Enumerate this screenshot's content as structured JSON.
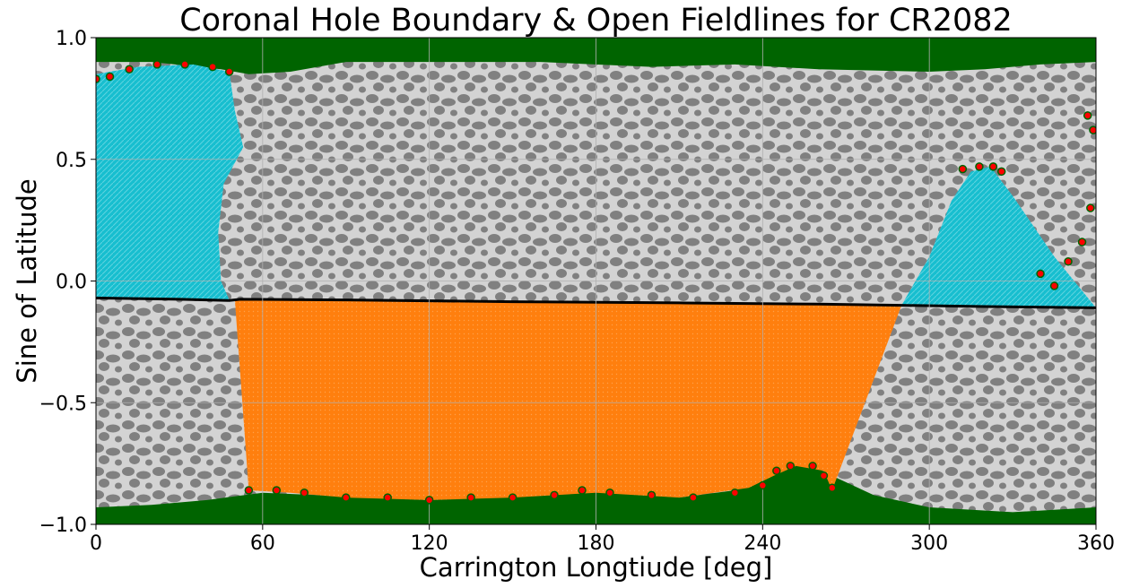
{
  "chart_data": {
    "type": "scatter",
    "title": "Coronal Hole Boundary & Open Fieldlines for CR2082",
    "xlabel": "Carrington Longtiude [deg]",
    "ylabel": "Sine of Latitude",
    "xlim": [
      0,
      360
    ],
    "ylim": [
      -1.0,
      1.0
    ],
    "grid": true,
    "x_ticks": [
      0,
      60,
      120,
      180,
      240,
      300,
      360
    ],
    "y_ticks": [
      -1.0,
      -0.5,
      0.0,
      0.5,
      1.0
    ],
    "x_tick_labels": [
      "0",
      "60",
      "120",
      "180",
      "240",
      "300",
      "360"
    ],
    "y_tick_labels": [
      "−1.0",
      "−0.5",
      "0.0",
      "0.5",
      "1.0"
    ],
    "colors": {
      "background_quiet": "#d3d3d3",
      "magnetic_patches": "#808080",
      "polar_regions": "#006400",
      "boundary_points": "#ff0000",
      "open_fieldlines_north": "#17becf",
      "open_fieldlines_south": "#ff7f0e",
      "neutral_line": "#000000"
    },
    "series": [
      {
        "name": "",
        "kind": "north_polar_region",
        "color": "#006400",
        "points": [
          [
            0,
            0.9
          ],
          [
            20,
            0.9
          ],
          [
            45,
            0.87
          ],
          [
            55,
            0.85
          ],
          [
            70,
            0.86
          ],
          [
            90,
            0.9
          ],
          [
            120,
            0.9
          ],
          [
            160,
            0.9
          ],
          [
            200,
            0.88
          ],
          [
            230,
            0.89
          ],
          [
            260,
            0.87
          ],
          [
            300,
            0.86
          ],
          [
            320,
            0.87
          ],
          [
            340,
            0.89
          ],
          [
            360,
            0.9
          ]
        ]
      },
      {
        "name": "",
        "kind": "south_polar_region",
        "color": "#006400",
        "points": [
          [
            0,
            -0.93
          ],
          [
            20,
            -0.92
          ],
          [
            40,
            -0.9
          ],
          [
            60,
            -0.87
          ],
          [
            80,
            -0.88
          ],
          [
            100,
            -0.89
          ],
          [
            120,
            -0.9
          ],
          [
            140,
            -0.89
          ],
          [
            160,
            -0.88
          ],
          [
            175,
            -0.86
          ],
          [
            190,
            -0.87
          ],
          [
            210,
            -0.89
          ],
          [
            230,
            -0.86
          ],
          [
            245,
            -0.78
          ],
          [
            255,
            -0.74
          ],
          [
            265,
            -0.8
          ],
          [
            280,
            -0.88
          ],
          [
            300,
            -0.93
          ],
          [
            330,
            -0.95
          ],
          [
            360,
            -0.93
          ]
        ]
      },
      {
        "name": "",
        "kind": "neutral_line",
        "color": "#000000",
        "points": [
          [
            0,
            -0.07
          ],
          [
            30,
            -0.075
          ],
          [
            48,
            -0.08
          ],
          [
            52,
            -0.075
          ],
          [
            90,
            -0.078
          ],
          [
            150,
            -0.085
          ],
          [
            210,
            -0.09
          ],
          [
            260,
            -0.095
          ],
          [
            290,
            -0.1
          ],
          [
            320,
            -0.105
          ],
          [
            360,
            -0.11
          ]
        ]
      },
      {
        "name": "",
        "kind": "open_fieldlines_north_west",
        "color": "#17becf",
        "polygon": [
          [
            0,
            0.85
          ],
          [
            15,
            0.88
          ],
          [
            35,
            0.89
          ],
          [
            48,
            0.86
          ],
          [
            50,
            0.7
          ],
          [
            53,
            0.55
          ],
          [
            46,
            0.4
          ],
          [
            44,
            0.2
          ],
          [
            45,
            0.0
          ],
          [
            48,
            -0.078
          ],
          [
            0,
            -0.07
          ]
        ]
      },
      {
        "name": "",
        "kind": "open_fieldlines_north_east",
        "color": "#17becf",
        "polygon": [
          [
            290,
            -0.1
          ],
          [
            300,
            0.1
          ],
          [
            308,
            0.33
          ],
          [
            315,
            0.45
          ],
          [
            322,
            0.47
          ],
          [
            330,
            0.35
          ],
          [
            345,
            0.1
          ],
          [
            360,
            -0.11
          ]
        ]
      },
      {
        "name": "",
        "kind": "open_fieldlines_south",
        "color": "#ff7f0e",
        "polygon": [
          [
            50,
            -0.078
          ],
          [
            290,
            -0.1
          ],
          [
            265,
            -0.86
          ],
          [
            262,
            -0.78
          ],
          [
            252,
            -0.76
          ],
          [
            244,
            -0.8
          ],
          [
            235,
            -0.85
          ],
          [
            210,
            -0.89
          ],
          [
            180,
            -0.87
          ],
          [
            150,
            -0.89
          ],
          [
            120,
            -0.9
          ],
          [
            90,
            -0.89
          ],
          [
            70,
            -0.87
          ],
          [
            55,
            -0.86
          ]
        ]
      },
      {
        "name": "",
        "kind": "boundary_south",
        "color": "#ff0000",
        "points": [
          [
            55,
            -0.86
          ],
          [
            65,
            -0.86
          ],
          [
            75,
            -0.87
          ],
          [
            90,
            -0.89
          ],
          [
            105,
            -0.89
          ],
          [
            120,
            -0.9
          ],
          [
            135,
            -0.89
          ],
          [
            150,
            -0.89
          ],
          [
            165,
            -0.88
          ],
          [
            175,
            -0.86
          ],
          [
            185,
            -0.87
          ],
          [
            200,
            -0.88
          ],
          [
            215,
            -0.89
          ],
          [
            230,
            -0.87
          ],
          [
            240,
            -0.84
          ],
          [
            245,
            -0.78
          ],
          [
            250,
            -0.76
          ],
          [
            258,
            -0.76
          ],
          [
            262,
            -0.8
          ],
          [
            265,
            -0.85
          ]
        ]
      },
      {
        "name": "",
        "kind": "boundary_north",
        "color": "#ff0000",
        "points": [
          [
            0,
            0.83
          ],
          [
            5,
            0.84
          ],
          [
            12,
            0.87
          ],
          [
            22,
            0.89
          ],
          [
            32,
            0.89
          ],
          [
            42,
            0.88
          ],
          [
            48,
            0.86
          ],
          [
            312,
            0.46
          ],
          [
            318,
            0.47
          ],
          [
            323,
            0.47
          ],
          [
            326,
            0.45
          ],
          [
            340,
            0.03
          ],
          [
            345,
            -0.02
          ],
          [
            350,
            0.08
          ],
          [
            355,
            0.16
          ],
          [
            358,
            0.3
          ],
          [
            359,
            0.62
          ],
          [
            357,
            0.68
          ]
        ]
      }
    ],
    "annotations": []
  }
}
